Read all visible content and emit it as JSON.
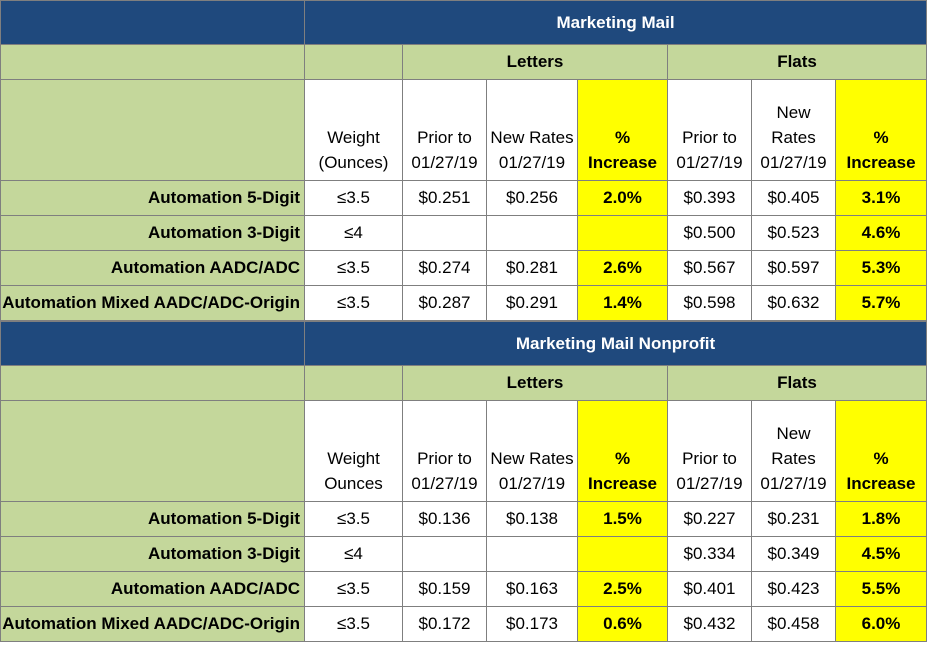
{
  "sections": [
    {
      "title": "Marketing Mail",
      "groups": {
        "letters": "Letters",
        "flats": "Flats"
      },
      "headers": {
        "weight": [
          "Weight",
          "(Ounces)"
        ],
        "letters_prior": [
          "Prior to",
          "01/27/19"
        ],
        "letters_new": [
          "New Rates",
          "01/27/19"
        ],
        "letters_pct": [
          "%",
          "Increase"
        ],
        "flats_prior": [
          "Prior to",
          "01/27/19"
        ],
        "flats_new": [
          "New",
          "Rates",
          "01/27/19"
        ],
        "flats_pct": [
          "%",
          "Increase"
        ]
      },
      "rows": [
        {
          "label": "Automation 5-Digit",
          "weight": "≤3.5",
          "letters_prior": "$0.251",
          "letters_new": "$0.256",
          "letters_pct": "2.0%",
          "flats_prior": "$0.393",
          "flats_new": "$0.405",
          "flats_pct": "3.1%"
        },
        {
          "label": "Automation 3-Digit",
          "weight": "≤4",
          "letters_prior": "",
          "letters_new": "",
          "letters_pct": "",
          "flats_prior": "$0.500",
          "flats_new": "$0.523",
          "flats_pct": "4.6%"
        },
        {
          "label": "Automation AADC/ADC",
          "weight": "≤3.5",
          "letters_prior": "$0.274",
          "letters_new": "$0.281",
          "letters_pct": "2.6%",
          "flats_prior": "$0.567",
          "flats_new": "$0.597",
          "flats_pct": "5.3%"
        },
        {
          "label": "Automation Mixed AADC/ADC-Origin",
          "weight": "≤3.5",
          "letters_prior": "$0.287",
          "letters_new": "$0.291",
          "letters_pct": "1.4%",
          "flats_prior": "$0.598",
          "flats_new": "$0.632",
          "flats_pct": "5.7%"
        }
      ]
    },
    {
      "title": "Marketing Mail Nonprofit",
      "groups": {
        "letters": "Letters",
        "flats": "Flats"
      },
      "headers": {
        "weight": [
          "Weight",
          "Ounces"
        ],
        "letters_prior": [
          "Prior to",
          "01/27/19"
        ],
        "letters_new": [
          "New Rates",
          "01/27/19"
        ],
        "letters_pct": [
          "%",
          "Increase"
        ],
        "flats_prior": [
          "Prior to",
          "01/27/19"
        ],
        "flats_new": [
          "New",
          "Rates",
          "01/27/19"
        ],
        "flats_pct": [
          "%",
          "Increase"
        ]
      },
      "rows": [
        {
          "label": "Automation 5-Digit",
          "weight": "≤3.5",
          "letters_prior": "$0.136",
          "letters_new": "$0.138",
          "letters_pct": "1.5%",
          "flats_prior": "$0.227",
          "flats_new": "$0.231",
          "flats_pct": "1.8%"
        },
        {
          "label": "Automation 3-Digit",
          "weight": "≤4",
          "letters_prior": "",
          "letters_new": "",
          "letters_pct": "",
          "flats_prior": "$0.334",
          "flats_new": "$0.349",
          "flats_pct": "4.5%"
        },
        {
          "label": "Automation AADC/ADC",
          "weight": "≤3.5",
          "letters_prior": "$0.159",
          "letters_new": "$0.163",
          "letters_pct": "2.5%",
          "flats_prior": "$0.401",
          "flats_new": "$0.423",
          "flats_pct": "5.5%"
        },
        {
          "label": "Automation Mixed AADC/ADC-Origin",
          "weight": "≤3.5",
          "letters_prior": "$0.172",
          "letters_new": "$0.173",
          "letters_pct": "0.6%",
          "flats_prior": "$0.432",
          "flats_new": "$0.458",
          "flats_pct": "6.0%"
        }
      ]
    }
  ],
  "colors": {
    "title_bg": "#1f497d",
    "label_bg": "#c4d79b",
    "highlight": "#ffff00",
    "cell_bg": "#ffffff"
  }
}
